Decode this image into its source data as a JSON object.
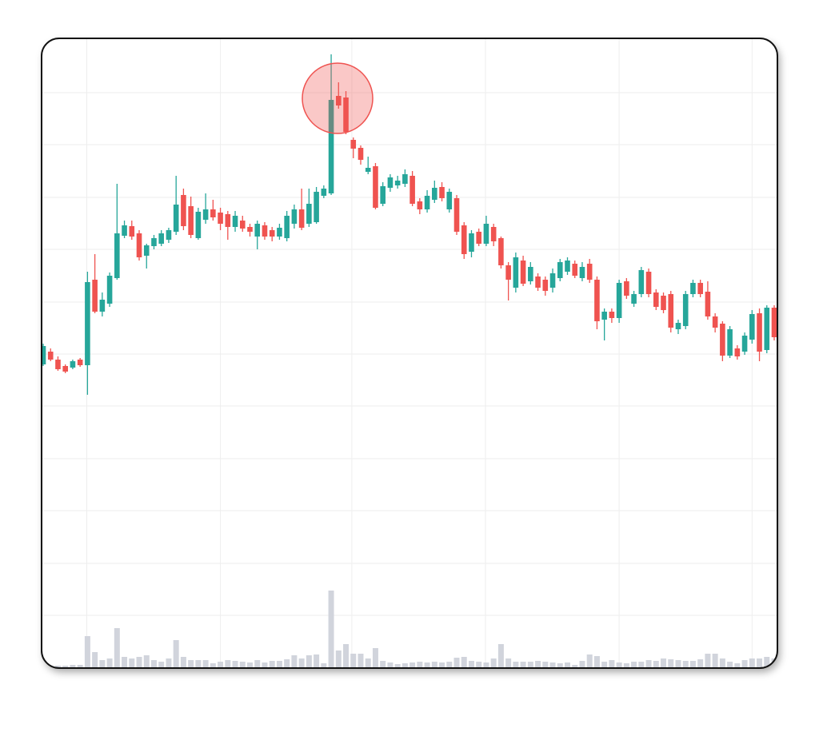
{
  "chart_data": {
    "type": "candlestick",
    "xlim": [
      0,
      99
    ],
    "xticks": [
      5.9,
      24,
      41.8,
      59.9,
      78,
      96
    ],
    "ylim": [
      0,
      788
    ],
    "yticks": [
      66,
      131,
      197,
      262,
      328,
      393,
      458,
      524,
      589,
      655,
      720
    ],
    "grid": true,
    "up_color": "#26a69a",
    "down_color": "#ef5350",
    "open": [
      380,
      396,
      386,
      378,
      376,
      386,
      379,
      486,
      446,
      456,
      488,
      541,
      553,
      544,
      516,
      528,
      531,
      536,
      546,
      592,
      578,
      538,
      561,
      574,
      570,
      568,
      552,
      560,
      552,
      540,
      554,
      548,
      540,
      538,
      556,
      574,
      556,
      558,
      591,
      594,
      716,
      714,
      661,
      651,
      621,
      628,
      581,
      601,
      604,
      606,
      616,
      584,
      574,
      586,
      602,
      574,
      588,
      554,
      521,
      546,
      531,
      552,
      538,
      504,
      476,
      510,
      484,
      490,
      486,
      476,
      488,
      496,
      506,
      488,
      506,
      486,
      436,
      446,
      438,
      484,
      456,
      468,
      496,
      470,
      466,
      468,
      424,
      428,
      468,
      482,
      471,
      440,
      431,
      391,
      400,
      396,
      411,
      444,
      398,
      451
    ],
    "high": [
      406,
      400,
      390,
      380,
      386,
      388,
      496,
      518,
      470,
      495,
      606,
      560,
      560,
      548,
      531,
      542,
      548,
      551,
      616,
      600,
      590,
      576,
      594,
      586,
      576,
      572,
      572,
      566,
      556,
      560,
      558,
      552,
      556,
      572,
      580,
      600,
      600,
      602,
      604,
      768,
      733,
      722,
      664,
      654,
      640,
      632,
      608,
      618,
      616,
      624,
      622,
      588,
      598,
      610,
      608,
      600,
      592,
      558,
      548,
      550,
      566,
      556,
      540,
      508,
      520,
      516,
      508,
      494,
      490,
      500,
      512,
      514,
      510,
      508,
      512,
      490,
      450,
      450,
      486,
      488,
      472,
      502,
      500,
      474,
      470,
      472,
      436,
      472,
      486,
      486,
      484,
      444,
      434,
      428,
      404,
      420,
      448,
      450,
      454,
      454
    ],
    "low": [
      378,
      384,
      372,
      369,
      374,
      377,
      342,
      444,
      440,
      452,
      486,
      538,
      536,
      510,
      500,
      524,
      528,
      532,
      542,
      548,
      538,
      536,
      556,
      560,
      548,
      536,
      546,
      546,
      540,
      524,
      536,
      534,
      536,
      534,
      550,
      548,
      552,
      556,
      588,
      592,
      700,
      668,
      638,
      630,
      618,
      574,
      578,
      596,
      600,
      602,
      578,
      568,
      570,
      582,
      584,
      570,
      542,
      512,
      514,
      528,
      528,
      528,
      500,
      460,
      470,
      478,
      480,
      472,
      466,
      470,
      484,
      492,
      488,
      484,
      482,
      424,
      410,
      432,
      432,
      462,
      452,
      464,
      464,
      448,
      444,
      420,
      418,
      424,
      464,
      464,
      436,
      420,
      384,
      388,
      386,
      392,
      406,
      384,
      394,
      410
    ],
    "close": [
      403,
      386,
      374,
      371,
      384,
      379,
      483,
      446,
      461,
      491,
      544,
      554,
      540,
      514,
      529,
      538,
      544,
      548,
      580,
      553,
      542,
      571,
      574,
      564,
      556,
      552,
      566,
      550,
      546,
      556,
      540,
      540,
      551,
      566,
      574,
      551,
      581,
      596,
      600,
      711,
      704,
      671,
      650,
      636,
      626,
      576,
      603,
      614,
      610,
      618,
      581,
      574,
      591,
      601,
      588,
      596,
      546,
      518,
      544,
      531,
      556,
      534,
      504,
      486,
      514,
      481,
      502,
      476,
      472,
      494,
      508,
      510,
      491,
      502,
      486,
      434,
      446,
      438,
      482,
      466,
      468,
      498,
      468,
      452,
      448,
      426,
      432,
      468,
      482,
      468,
      440,
      426,
      391,
      424,
      390,
      416,
      443,
      396,
      451,
      414
    ],
    "volume": {
      "color": "#d1d4dc",
      "ylim": [
        0,
        100
      ],
      "values": [
        3,
        3,
        3,
        3,
        4,
        4,
        40,
        20,
        10,
        12,
        50,
        14,
        12,
        14,
        16,
        10,
        8,
        12,
        35,
        14,
        10,
        10,
        10,
        6,
        8,
        10,
        9,
        8,
        7,
        10,
        7,
        9,
        9,
        11,
        16,
        12,
        16,
        17,
        6,
        97,
        22,
        30,
        18,
        18,
        12,
        25,
        9,
        7,
        5,
        6,
        7,
        8,
        7,
        8,
        7,
        8,
        13,
        14,
        9,
        8,
        7,
        12,
        30,
        12,
        8,
        8,
        8,
        9,
        8,
        7,
        6,
        7,
        4,
        9,
        17,
        15,
        8,
        10,
        7,
        6,
        8,
        8,
        10,
        9,
        12,
        11,
        10,
        9,
        9,
        11,
        18,
        18,
        12,
        8,
        6,
        10,
        12,
        12,
        14,
        12
      ]
    }
  }
}
